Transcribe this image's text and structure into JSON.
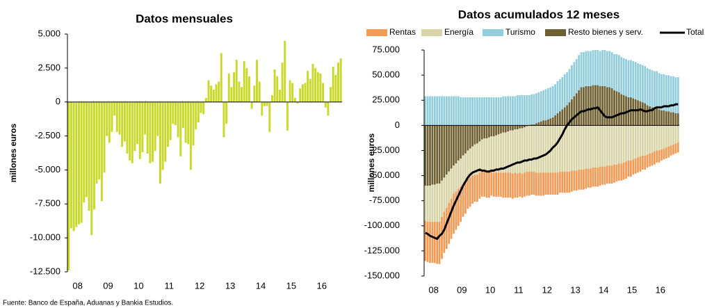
{
  "chart_data": [
    {
      "type": "bar",
      "title": "Datos mensuales",
      "y_label": "millones euros",
      "color": "#c8d92a",
      "grid": false,
      "categories": [
        "08",
        null,
        null,
        null,
        null,
        null,
        null,
        null,
        null,
        null,
        null,
        null,
        "09",
        null,
        null,
        null,
        null,
        null,
        null,
        null,
        null,
        null,
        null,
        null,
        "10",
        null,
        null,
        null,
        null,
        null,
        null,
        null,
        null,
        null,
        null,
        null,
        "11",
        null,
        null,
        null,
        null,
        null,
        null,
        null,
        null,
        null,
        null,
        null,
        "12",
        null,
        null,
        null,
        null,
        null,
        null,
        null,
        null,
        null,
        null,
        null,
        "13",
        null,
        null,
        null,
        null,
        null,
        null,
        null,
        null,
        null,
        null,
        null,
        "14",
        null,
        null,
        null,
        null,
        null,
        null,
        null,
        null,
        null,
        null,
        null,
        "15",
        null,
        null,
        null,
        null,
        null,
        null,
        null,
        null,
        null,
        null,
        null,
        "16",
        null,
        null,
        null,
        null,
        null,
        null,
        null,
        null,
        null,
        null,
        null
      ],
      "values": [
        -12400,
        -9300,
        -9500,
        -9200,
        -9000,
        -8900,
        -7400,
        -7000,
        -8000,
        -9800,
        -7900,
        -6000,
        -5700,
        -7300,
        -5200,
        -2500,
        -3000,
        -2200,
        -1000,
        -2200,
        -2400,
        -3300,
        -2900,
        -3800,
        -4300,
        -4500,
        -3600,
        -3100,
        -4200,
        -3700,
        -2400,
        -3800,
        -4500,
        -4400,
        -3600,
        -2500,
        -6000,
        -5000,
        -4400,
        -3300,
        -2800,
        -1600,
        -1700,
        -2600,
        -4000,
        -1900,
        -3000,
        -3100,
        -5000,
        -3200,
        -2000,
        -1500,
        -800,
        -900,
        300,
        1600,
        1200,
        900,
        1300,
        1500,
        3600,
        -2600,
        -1600,
        2100,
        1100,
        2200,
        3100,
        1500,
        1100,
        3000,
        2500,
        1900,
        -500,
        1200,
        3100,
        1500,
        -1000,
        -300,
        -300,
        -2200,
        500,
        2400,
        1900,
        900,
        2900,
        4500,
        -2100,
        1600,
        1400,
        300,
        -100,
        1000,
        1300,
        1400,
        2300,
        1700,
        2800,
        2500,
        2200,
        2100,
        1400,
        -400,
        -1000,
        1100,
        2600,
        2000,
        2900,
        3200
      ],
      "ylim": [
        -12500,
        5000
      ],
      "yticks": [
        {
          "value": 5000,
          "label": "5.000"
        },
        {
          "value": 2500,
          "label": "2.500"
        },
        0,
        {
          "value": -2500,
          "label": "-2.500"
        },
        {
          "value": -5000,
          "label": "-5.000"
        },
        {
          "value": -7500,
          "label": "-7.500"
        },
        {
          "value": -10000,
          "label": "-10.000"
        },
        {
          "value": -12500,
          "label": "-12.500"
        }
      ]
    },
    {
      "type": "stacked_bar_line",
      "title": "Datos acumulados 12 meses",
      "y_label": "millones euros",
      "grid": false,
      "categories": [
        "08",
        null,
        null,
        null,
        null,
        null,
        null,
        null,
        null,
        null,
        null,
        null,
        "09",
        null,
        null,
        null,
        null,
        null,
        null,
        null,
        null,
        null,
        null,
        null,
        "10",
        null,
        null,
        null,
        null,
        null,
        null,
        null,
        null,
        null,
        null,
        null,
        "11",
        null,
        null,
        null,
        null,
        null,
        null,
        null,
        null,
        null,
        null,
        null,
        "12",
        null,
        null,
        null,
        null,
        null,
        null,
        null,
        null,
        null,
        null,
        null,
        "13",
        null,
        null,
        null,
        null,
        null,
        null,
        null,
        null,
        null,
        null,
        null,
        "14",
        null,
        null,
        null,
        null,
        null,
        null,
        null,
        null,
        null,
        null,
        null,
        "15",
        null,
        null,
        null,
        null,
        null,
        null,
        null,
        null,
        null,
        null,
        null,
        "16",
        null,
        null,
        null,
        null,
        null,
        null,
        null,
        null,
        null,
        null,
        null
      ],
      "ylim": [
        -150000,
        75000
      ],
      "yticks": [
        {
          "value": 75000,
          "label": "75.000"
        },
        {
          "value": 50000,
          "label": "50.000"
        },
        {
          "value": 25000,
          "label": "25.000"
        },
        0,
        {
          "value": -25000,
          "label": "-25.000"
        },
        {
          "value": -50000,
          "label": "-50.000"
        },
        {
          "value": -75000,
          "label": "-75.000"
        },
        {
          "value": -100000,
          "label": "-100.000"
        },
        {
          "value": -125000,
          "label": "-125.000"
        },
        {
          "value": -150000,
          "label": "-150.000"
        }
      ],
      "series": [
        {
          "name": "Rentas",
          "color": "#f39a55",
          "values": [
            -40000,
            -40000,
            -41000,
            -41000,
            -41000,
            -42000,
            -42000,
            -42000,
            -41000,
            -41000,
            -41000,
            -40000,
            -40000,
            -38000,
            -37000,
            -35000,
            -33000,
            -32000,
            -30000,
            -29000,
            -28000,
            -27000,
            -27000,
            -26000,
            -25000,
            -25000,
            -25000,
            -25000,
            -24000,
            -24000,
            -24000,
            -24000,
            -24000,
            -25000,
            -25000,
            -25000,
            -25000,
            -25000,
            -25000,
            -24000,
            -24000,
            -24000,
            -24000,
            -24000,
            -24000,
            -23000,
            -23000,
            -23000,
            -23000,
            -23000,
            -23000,
            -22000,
            -22000,
            -22000,
            -22000,
            -22000,
            -22000,
            -21000,
            -21000,
            -21000,
            -21000,
            -21000,
            -21000,
            -20000,
            -20000,
            -20000,
            -20000,
            -20000,
            -20000,
            -19000,
            -19000,
            -19000,
            -19000,
            -19000,
            -19000,
            -18000,
            -18000,
            -18000,
            -18000,
            -18000,
            -18000,
            -17000,
            -17000,
            -17000,
            -17000,
            -17000,
            -16000,
            -16000,
            -15000,
            -15000,
            -15000,
            -15000,
            -14000,
            -14000,
            -13000,
            -13000,
            -13000,
            -13000,
            -12000,
            -12000,
            -11000,
            -11000,
            -11000,
            -11000,
            -10000,
            -10000,
            -10000,
            -10000
          ]
        },
        {
          "name": "Energía",
          "color": "#d8d4a8",
          "values": [
            -35000,
            -36000,
            -36000,
            -37000,
            -37000,
            -38000,
            -38000,
            -36000,
            -34000,
            -33000,
            -31000,
            -30000,
            -28000,
            -28000,
            -28000,
            -28000,
            -28000,
            -28000,
            -28000,
            -29000,
            -29000,
            -30000,
            -31000,
            -31000,
            -32000,
            -33000,
            -34000,
            -35000,
            -35000,
            -36000,
            -37000,
            -38000,
            -39000,
            -40000,
            -40000,
            -41000,
            -42000,
            -43000,
            -43000,
            -44000,
            -44000,
            -45000,
            -45000,
            -45000,
            -46000,
            -46000,
            -46000,
            -47000,
            -47000,
            -47000,
            -47000,
            -47000,
            -47000,
            -47000,
            -47000,
            -47000,
            -47000,
            -46000,
            -46000,
            -46000,
            -46000,
            -46000,
            -45000,
            -45000,
            -45000,
            -44000,
            -44000,
            -44000,
            -43000,
            -43000,
            -43000,
            -42000,
            -42000,
            -42000,
            -41000,
            -41000,
            -41000,
            -40000,
            -40000,
            -40000,
            -39000,
            -39000,
            -38000,
            -38000,
            -37000,
            -36000,
            -35000,
            -35000,
            -34000,
            -33000,
            -32000,
            -31000,
            -30000,
            -30000,
            -29000,
            -28000,
            -27000,
            -26000,
            -25000,
            -25000,
            -24000,
            -23000,
            -22000,
            -21000,
            -20000,
            -19000,
            -18000,
            -17000
          ]
        },
        {
          "name": "Turismo",
          "color": "#92cddc",
          "values": [
            29000,
            29000,
            29000,
            29000,
            29000,
            29000,
            29000,
            29000,
            29000,
            29000,
            29000,
            29000,
            29000,
            29000,
            29000,
            28000,
            28000,
            28000,
            28000,
            28000,
            28000,
            28000,
            28000,
            28000,
            28000,
            28000,
            28000,
            28000,
            28000,
            28000,
            28000,
            28000,
            28000,
            29000,
            29000,
            29000,
            29000,
            29000,
            29000,
            30000,
            30000,
            30000,
            30000,
            30000,
            30000,
            30000,
            30000,
            30000,
            30000,
            30000,
            30000,
            31000,
            31000,
            31000,
            31000,
            31000,
            32000,
            32000,
            32000,
            33000,
            33000,
            33000,
            34000,
            34000,
            34000,
            35000,
            35000,
            35000,
            35000,
            35000,
            35000,
            35000,
            35000,
            35000,
            35000,
            36000,
            36000,
            36000,
            36000,
            36000,
            36000,
            37000,
            37000,
            37000,
            37000,
            37000,
            37000,
            37000,
            37000,
            37000,
            37000,
            37000,
            37000,
            37000,
            37000,
            37000,
            37000,
            37000,
            37000,
            36000,
            36000,
            36000,
            36000,
            36000,
            36000,
            36000,
            36000,
            36000
          ]
        },
        {
          "name": "Resto bienes y serv.",
          "color": "#6e6030",
          "values": [
            -60000,
            -60000,
            -60000,
            -59000,
            -59000,
            -58000,
            -58000,
            -55000,
            -52000,
            -49000,
            -46000,
            -43000,
            -40000,
            -38000,
            -35000,
            -33000,
            -30000,
            -28000,
            -25000,
            -23000,
            -21000,
            -19000,
            -18000,
            -16000,
            -14000,
            -13000,
            -13000,
            -12000,
            -11000,
            -11000,
            -10000,
            -9000,
            -8000,
            -7000,
            -7000,
            -6000,
            -5000,
            -5000,
            -4000,
            -4000,
            -3000,
            -3000,
            -2000,
            -1000,
            0,
            1000,
            1000,
            2000,
            3000,
            4000,
            5000,
            5000,
            6000,
            7000,
            8000,
            10000,
            12000,
            14000,
            16000,
            18000,
            20000,
            23000,
            26000,
            29000,
            32000,
            35000,
            38000,
            38000,
            39000,
            39000,
            39000,
            40000,
            40000,
            40000,
            39000,
            39000,
            39000,
            38000,
            38000,
            37000,
            35000,
            34000,
            33000,
            31000,
            30000,
            29000,
            28000,
            28000,
            27000,
            26000,
            25000,
            24000,
            23000,
            22000,
            20000,
            19000,
            18000,
            17000,
            17000,
            16000,
            15000,
            15000,
            14000,
            14000,
            13000,
            13000,
            12000,
            12000
          ]
        },
        {
          "name": "Total",
          "color": "#000000",
          "type": "line",
          "values": [
            -107000,
            -108000,
            -110000,
            -111000,
            -112000,
            -113000,
            -110000,
            -108000,
            -104000,
            -98000,
            -92000,
            -86000,
            -80000,
            -75000,
            -70000,
            -65000,
            -60000,
            -56000,
            -52000,
            -49000,
            -47000,
            -46000,
            -45000,
            -44000,
            -45000,
            -45000,
            -46000,
            -46000,
            -45000,
            -45000,
            -44000,
            -44000,
            -43000,
            -43000,
            -42000,
            -41000,
            -40000,
            -39000,
            -38000,
            -37000,
            -37000,
            -36000,
            -35000,
            -35000,
            -34000,
            -34000,
            -33000,
            -33000,
            -32000,
            -31000,
            -30000,
            -29000,
            -27000,
            -25000,
            -22000,
            -20000,
            -17000,
            -13000,
            -9000,
            -4000,
            0,
            3000,
            6000,
            8000,
            10000,
            12000,
            14000,
            14000,
            15000,
            16000,
            16000,
            17000,
            17000,
            18000,
            15000,
            12000,
            9000,
            8000,
            8000,
            8000,
            9000,
            10000,
            11000,
            12000,
            12000,
            13000,
            14000,
            15000,
            15000,
            15000,
            15000,
            16000,
            15000,
            14000,
            14000,
            15000,
            15000,
            17000,
            18000,
            18000,
            18000,
            19000,
            19000,
            19000,
            20000,
            20000,
            21000,
            21000
          ]
        }
      ]
    }
  ],
  "source": "Fuente: Banco de España, Aduanas y Bankia Estudios."
}
